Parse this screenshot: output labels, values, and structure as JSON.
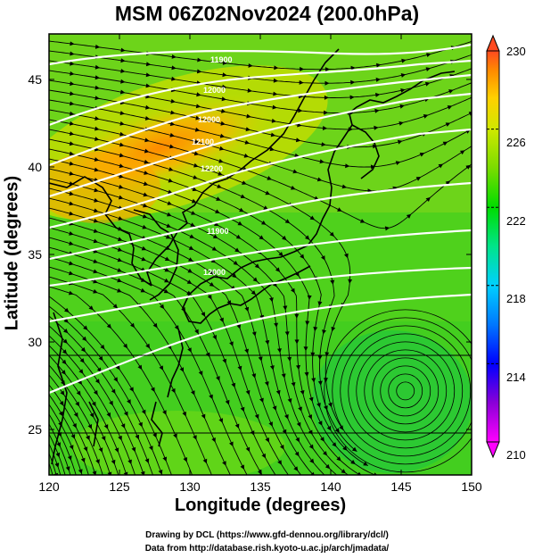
{
  "title": "MSM 06Z02Nov2024 (200.0hPa)",
  "xlabel": "Longitude (degrees)",
  "ylabel": "Latitude  (degrees)",
  "credit_line1": "Drawing by DCL (https://www.gfd-dennou.org/library/dcl/)",
  "credit_line2": "Data from http://database.rish.kyoto-u.ac.jp/arch/jmadata/",
  "colorbar": {
    "tick_labels": [
      "210",
      "214",
      "218",
      "222",
      "226",
      "230"
    ],
    "range": [
      210,
      230
    ],
    "colors": [
      "#ff00ff",
      "#8a00d8",
      "#0000ff",
      "#0077ff",
      "#00d0ff",
      "#00e48a",
      "#00dc00",
      "#7adc00",
      "#d0e800",
      "#ffd000",
      "#ff8a00",
      "#ff4a20"
    ]
  },
  "contour_labels": [
    "11900",
    "12000",
    "12000",
    "12100",
    "12200",
    "11900",
    "12000"
  ],
  "chart_data": {
    "type": "map",
    "title": "MSM 06Z02Nov2024 (200.0hPa)",
    "xlabel": "Longitude (degrees)",
    "ylabel": "Latitude  (degrees)",
    "xlim": [
      120,
      150
    ],
    "ylim": [
      22.4,
      47.6
    ],
    "xticks": [
      120,
      125,
      130,
      135,
      140,
      145,
      150
    ],
    "yticks": [
      25,
      30,
      35,
      40,
      45
    ],
    "xtick_labels": [
      "120",
      "125",
      "130",
      "135",
      "140",
      "145",
      "150"
    ],
    "ytick_labels": [
      "25",
      "30",
      "35",
      "40",
      "45"
    ],
    "cyclone_center": [
      145.3,
      27.2
    ],
    "colorbar_range": [
      210,
      230
    ]
  }
}
